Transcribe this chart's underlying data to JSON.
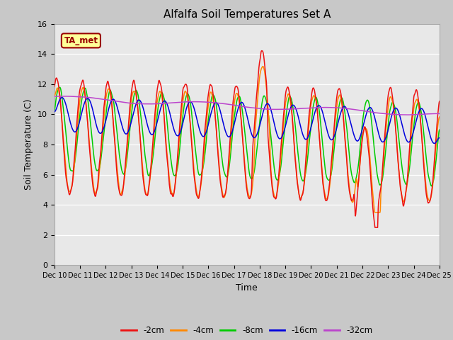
{
  "title": "Alfalfa Soil Temperatures Set A",
  "xlabel": "Time",
  "ylabel": "Soil Temperature (C)",
  "ylim": [
    0,
    16
  ],
  "yticks": [
    0,
    2,
    4,
    6,
    8,
    10,
    12,
    14,
    16
  ],
  "annotation_text": "TA_met",
  "annotation_color": "#990000",
  "annotation_bg": "#ffff99",
  "fig_bg": "#c8c8c8",
  "plot_bg": "#e8e8e8",
  "legend_labels": [
    "-2cm",
    "-4cm",
    "-8cm",
    "-16cm",
    "-32cm"
  ],
  "line_colors": [
    "#ee1111",
    "#ff8800",
    "#00cc00",
    "#0000dd",
    "#bb44cc"
  ],
  "xtick_labels": [
    "Dec 10",
    "Dec 11",
    "Dec 12",
    "Dec 13",
    "Dec 14",
    "Dec 15",
    "Dec 16",
    "Dec 17",
    "Dec 18",
    "Dec 19",
    "Dec 20",
    "Dec 21",
    "Dec 22",
    "Dec 23",
    "Dec 24",
    "Dec 25"
  ]
}
